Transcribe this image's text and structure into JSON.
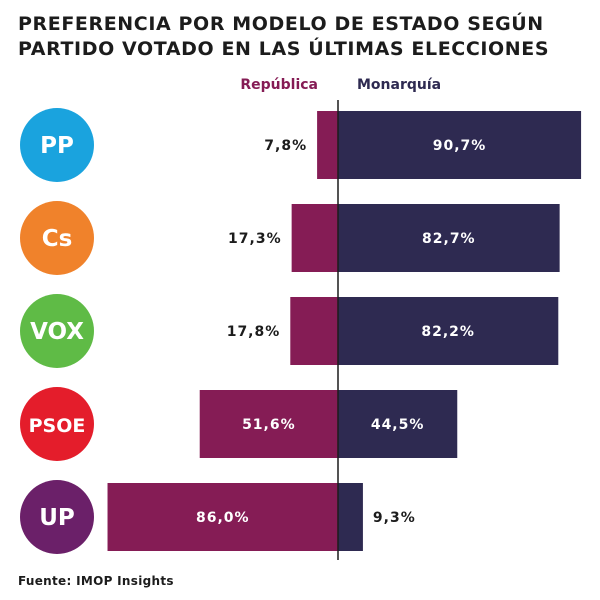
{
  "chart_data": {
    "type": "bar",
    "title_lines": [
      "PREFERENCIA POR MODELO DE ESTADO SEGÚN",
      "PARTIDO VOTADO EN LAS ÚLTIMAS ELECCIONES"
    ],
    "categories": [
      "PP",
      "Cs",
      "VOX",
      "PSOE",
      "UP"
    ],
    "series": [
      {
        "name": "República",
        "values": [
          7.8,
          17.3,
          17.8,
          51.6,
          86.0
        ],
        "labels": [
          "7,8%",
          "17,3%",
          "17,8%",
          "51,6%",
          "86,0%"
        ]
      },
      {
        "name": "Monarquía",
        "values": [
          90.7,
          82.7,
          82.2,
          44.5,
          9.3
        ],
        "labels": [
          "90,7%",
          "82,7%",
          "82,2%",
          "44,5%",
          "9,3%"
        ]
      }
    ],
    "party_colors": [
      "#1aa3de",
      "#f0822b",
      "#5fbb46",
      "#e41d2b",
      "#6b2069"
    ],
    "colors": {
      "republica": "#851c55",
      "monarquia": "#2e2a51",
      "axis": "#1c1c1c"
    },
    "source": "Fuente: IMOP Insights"
  }
}
